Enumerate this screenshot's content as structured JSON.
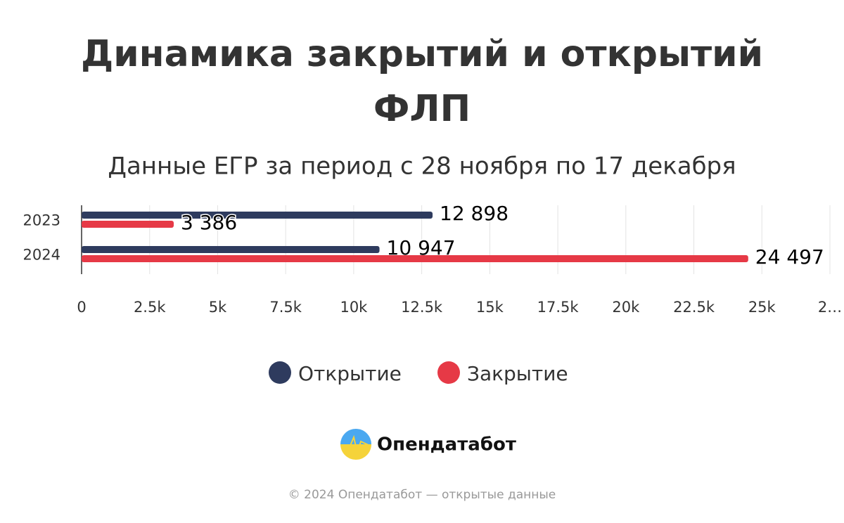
{
  "chart_data": {
    "type": "bar",
    "orientation": "horizontal",
    "title": "Динамика закрытий и открытий ФЛП",
    "subtitle": "Данные ЕГР за период с 28 ноября по 17 декабря",
    "categories": [
      "2023",
      "2024"
    ],
    "series": [
      {
        "name": "Открытие",
        "color": "#2e3b5e",
        "values": [
          12898,
          10947
        ],
        "value_labels": [
          "12 898",
          "10 947"
        ]
      },
      {
        "name": "Закрытие",
        "color": "#e63946",
        "values": [
          3386,
          24497
        ],
        "value_labels": [
          "3 386",
          "24 497"
        ]
      }
    ],
    "xlim": [
      0,
      27500
    ],
    "xticks": [
      0,
      {
        "value": 2500,
        "label": "2.5k"
      },
      {
        "value": 5000,
        "label": "5k"
      },
      {
        "value": 7500,
        "label": "7.5k"
      },
      {
        "value": 10000,
        "label": "10k"
      },
      {
        "value": 12500,
        "label": "12.5k"
      },
      {
        "value": 15000,
        "label": "15k"
      },
      {
        "value": 17500,
        "label": "17.5k"
      },
      {
        "value": 20000,
        "label": "20k"
      },
      {
        "value": 22500,
        "label": "22.5k"
      },
      {
        "value": 25000,
        "label": "25k"
      },
      {
        "value": 27500,
        "label": "2…"
      }
    ],
    "grid": true,
    "legend": "bottom"
  },
  "footer": {
    "brand": "Опендатабот",
    "copyright": "© 2024 Опендатабот — открытые данные"
  }
}
